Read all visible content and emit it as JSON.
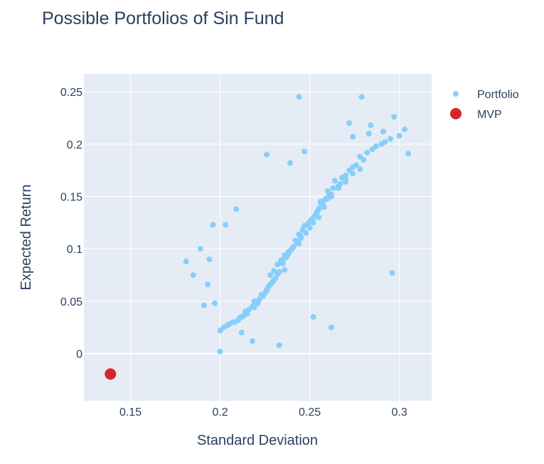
{
  "chart_data": {
    "type": "scatter",
    "title": "Possible Portfolios of Sin Fund",
    "xlabel": "Standard Deviation",
    "ylabel": "Expected Return",
    "xlim": [
      0.124,
      0.318
    ],
    "ylim": [
      -0.045,
      0.267
    ],
    "x_ticks": [
      0.15,
      0.2,
      0.25,
      0.3
    ],
    "x_tick_labels": [
      "0.15",
      "0.2",
      "0.25",
      "0.3"
    ],
    "y_ticks": [
      0,
      0.05,
      0.1,
      0.15,
      0.2,
      0.25
    ],
    "y_tick_labels": [
      "0",
      "0.05",
      "0.1",
      "0.15",
      "0.2",
      "0.25"
    ],
    "grid": true,
    "legend_position": "top-right",
    "plot_background": "#e5ecf6",
    "series": [
      {
        "name": "Portfolio",
        "color": "#87cefa",
        "marker": "circle",
        "x": [
          0.245,
          0.235,
          0.255,
          0.228,
          0.262,
          0.24,
          0.25,
          0.232,
          0.258,
          0.244,
          0.236,
          0.252,
          0.226,
          0.266,
          0.248,
          0.238,
          0.256,
          0.23,
          0.26,
          0.242,
          0.224,
          0.27,
          0.246,
          0.234,
          0.254,
          0.22,
          0.264,
          0.241,
          0.251,
          0.229,
          0.272,
          0.218,
          0.247,
          0.237,
          0.259,
          0.233,
          0.253,
          0.243,
          0.227,
          0.268,
          0.214,
          0.276,
          0.249,
          0.231,
          0.257,
          0.239,
          0.261,
          0.222,
          0.245,
          0.235,
          0.28,
          0.212,
          0.263,
          0.225,
          0.255,
          0.24,
          0.274,
          0.216,
          0.25,
          0.232,
          0.285,
          0.208,
          0.267,
          0.221,
          0.258,
          0.236,
          0.278,
          0.21,
          0.244,
          0.228,
          0.29,
          0.205,
          0.27,
          0.219,
          0.262,
          0.238,
          0.282,
          0.211,
          0.252,
          0.226,
          0.295,
          0.202,
          0.274,
          0.215,
          0.266,
          0.23,
          0.287,
          0.207,
          0.256,
          0.223,
          0.3,
          0.2,
          0.278,
          0.213,
          0.27,
          0.234,
          0.292,
          0.204,
          0.26,
          0.219,
          0.181,
          0.189,
          0.194,
          0.185,
          0.193,
          0.197,
          0.226,
          0.247,
          0.239,
          0.209,
          0.244,
          0.279,
          0.284,
          0.291,
          0.297,
          0.303,
          0.305,
          0.283,
          0.272,
          0.274,
          0.296,
          0.262,
          0.252,
          0.233,
          0.218,
          0.212,
          0.203,
          0.196,
          0.191,
          0.2
        ],
        "y": [
          0.11,
          0.09,
          0.13,
          0.075,
          0.15,
          0.1,
          0.12,
          0.085,
          0.14,
          0.105,
          0.08,
          0.125,
          0.06,
          0.16,
          0.115,
          0.095,
          0.145,
          0.07,
          0.155,
          0.108,
          0.055,
          0.17,
          0.118,
          0.088,
          0.135,
          0.05,
          0.165,
          0.102,
          0.128,
          0.068,
          0.175,
          0.045,
          0.122,
          0.092,
          0.148,
          0.078,
          0.132,
          0.106,
          0.064,
          0.168,
          0.04,
          0.18,
          0.124,
          0.072,
          0.142,
          0.098,
          0.152,
          0.052,
          0.112,
          0.086,
          0.185,
          0.035,
          0.158,
          0.058,
          0.138,
          0.1,
          0.178,
          0.042,
          0.126,
          0.076,
          0.195,
          0.03,
          0.162,
          0.048,
          0.146,
          0.094,
          0.188,
          0.032,
          0.114,
          0.066,
          0.2,
          0.028,
          0.166,
          0.044,
          0.152,
          0.097,
          0.192,
          0.034,
          0.13,
          0.061,
          0.205,
          0.025,
          0.172,
          0.038,
          0.158,
          0.079,
          0.198,
          0.03,
          0.14,
          0.056,
          0.208,
          0.022,
          0.176,
          0.036,
          0.164,
          0.089,
          0.202,
          0.027,
          0.148,
          0.05,
          0.088,
          0.1,
          0.09,
          0.075,
          0.066,
          0.048,
          0.19,
          0.193,
          0.182,
          0.138,
          0.245,
          0.245,
          0.218,
          0.212,
          0.226,
          0.214,
          0.191,
          0.21,
          0.22,
          0.207,
          0.077,
          0.025,
          0.035,
          0.008,
          0.012,
          0.02,
          0.123,
          0.123,
          0.046,
          0.002
        ]
      },
      {
        "name": "MVP",
        "color": "#d62728",
        "marker": "circle",
        "x": [
          0.1388
        ],
        "y": [
          -0.0195
        ]
      }
    ]
  }
}
